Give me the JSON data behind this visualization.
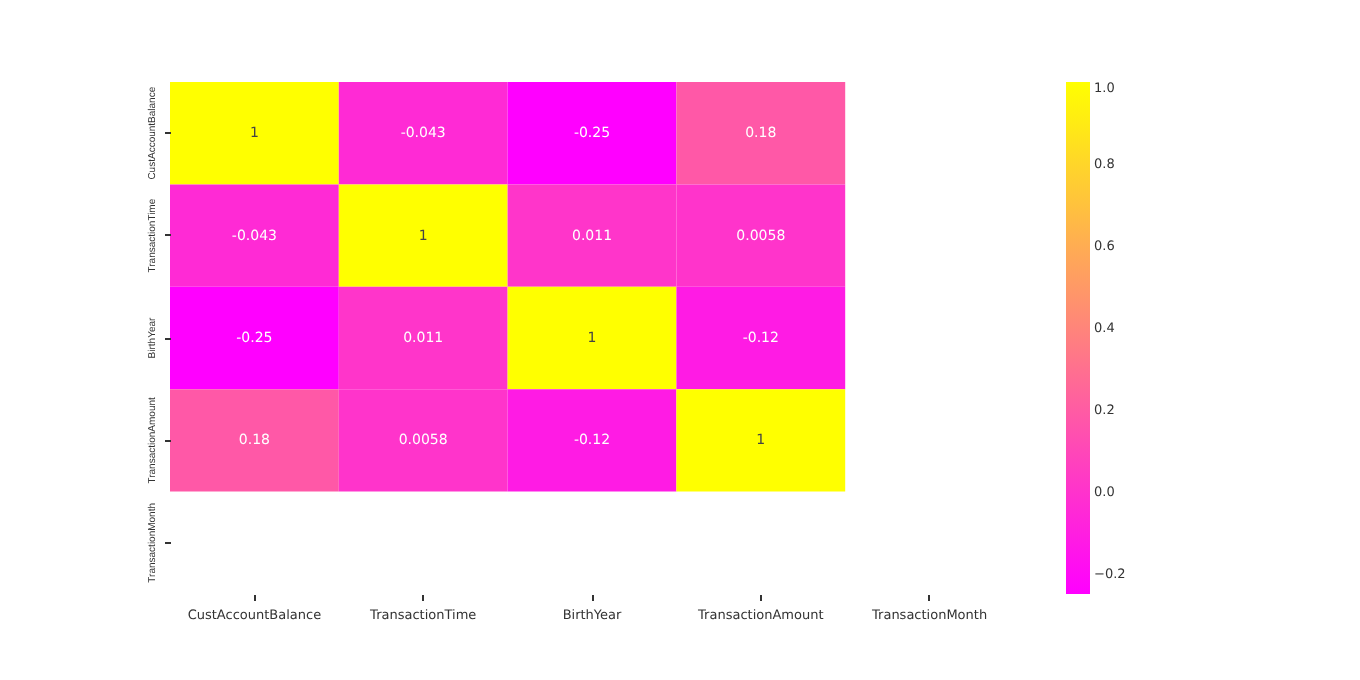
{
  "chart_data": {
    "type": "heatmap",
    "categories": [
      "CustAccountBalance",
      "TransactionTime",
      "BirthYear",
      "TransactionAmount",
      "TransactionMonth"
    ],
    "y_categories": [
      "CustAccountBalance",
      "TransactionTime",
      "BirthYear",
      "TransactionAmount",
      "TransactionMonth"
    ],
    "cells": [
      [
        1,
        -0.043,
        -0.25,
        0.18,
        null
      ],
      [
        -0.043,
        1,
        0.011,
        0.0058,
        null
      ],
      [
        -0.25,
        0.011,
        1,
        -0.12,
        null
      ],
      [
        0.18,
        0.0058,
        -0.12,
        1,
        null
      ],
      [
        null,
        null,
        null,
        null,
        null
      ]
    ],
    "data_labels": true,
    "clim": [
      -0.25,
      1
    ],
    "cticks": [
      {
        "value": -0.2,
        "label": "−0.2"
      },
      {
        "value": 0,
        "label": "0.0"
      },
      {
        "value": 0.2,
        "label": "0.2"
      },
      {
        "value": 0.4,
        "label": "0.4"
      },
      {
        "value": 0.6,
        "label": "0.6"
      },
      {
        "value": 0.8,
        "label": "0.8"
      },
      {
        "value": 1,
        "label": "1.0"
      }
    ]
  }
}
